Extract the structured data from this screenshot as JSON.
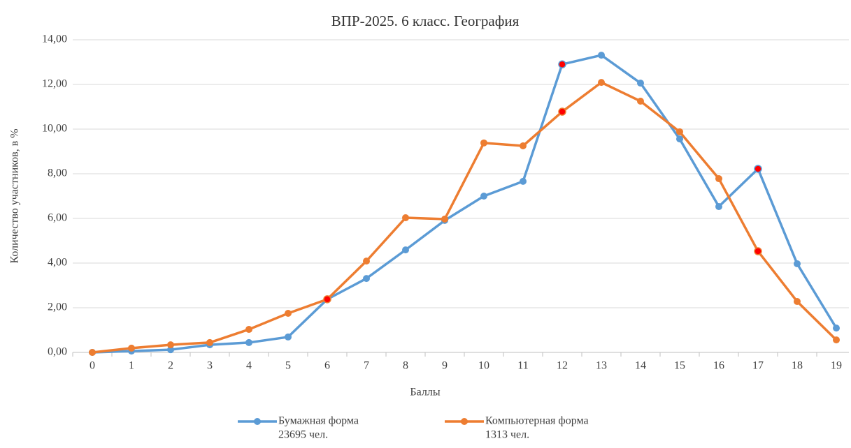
{
  "chart_data": {
    "type": "line",
    "title": "ВПР-2025. 6 класс. География",
    "x_label": "Баллы",
    "y_label": "Количество участников, в %",
    "categories": [
      "0",
      "1",
      "2",
      "3",
      "4",
      "5",
      "6",
      "7",
      "8",
      "9",
      "10",
      "11",
      "12",
      "13",
      "14",
      "15",
      "16",
      "17",
      "18",
      "19"
    ],
    "series": [
      {
        "name": "Бумажная форма",
        "legend_sublabel": "23695 чел.",
        "color": "#5b9bd5",
        "values": [
          0,
          0.06,
          0.12,
          0.34,
          0.44,
          0.69,
          2.38,
          3.31,
          4.59,
          5.91,
          7.0,
          7.66,
          12.9,
          13.31,
          12.06,
          9.56,
          6.53,
          8.22,
          3.97,
          1.09
        ],
        "highlight_indices": [
          12,
          17
        ]
      },
      {
        "name": "Компьютерная форма",
        "legend_sublabel": "1313 чел.",
        "color": "#ed7d31",
        "values": [
          0,
          0.19,
          0.34,
          0.44,
          1.03,
          1.75,
          2.38,
          4.09,
          6.03,
          5.97,
          9.38,
          9.25,
          10.78,
          12.09,
          11.25,
          9.88,
          7.78,
          4.53,
          2.28,
          0.56
        ],
        "highlight_indices": [
          6,
          12,
          17
        ]
      }
    ],
    "highlight_color": "#ff0000",
    "ylim": [
      0,
      14
    ],
    "yticks": [
      {
        "value": 0,
        "label": "0,00"
      },
      {
        "value": 2,
        "label": "2,00"
      },
      {
        "value": 4,
        "label": "4,00"
      },
      {
        "value": 6,
        "label": "6,00"
      },
      {
        "value": 8,
        "label": "8,00"
      },
      {
        "value": 10,
        "label": "10,00"
      },
      {
        "value": 12,
        "label": "12,00"
      },
      {
        "value": 14,
        "label": "14,00"
      }
    ],
    "grid": true,
    "legend": "bottom"
  }
}
